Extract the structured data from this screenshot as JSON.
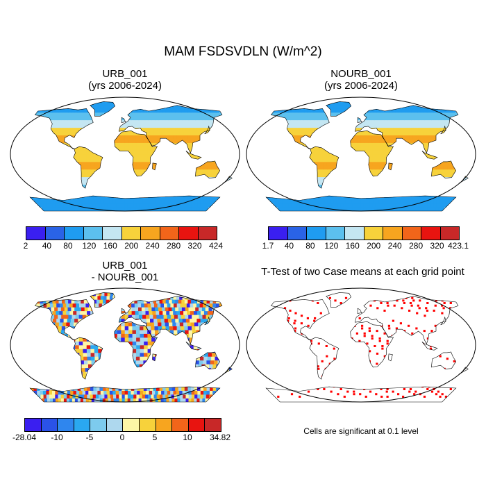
{
  "title": "MAM FSDSVDLN (W/m^2)",
  "panels": [
    {
      "title_line1": "URB_001",
      "title_line2": "(yrs 2006-2024)"
    },
    {
      "title_line1": "NOURB_001",
      "title_line2": "(yrs 2006-2024)"
    },
    {
      "title_line1": "URB_001",
      "title_line2": "- NOURB_001"
    },
    {
      "title_line1": "T-Test of two Case means at each grid point",
      "title_line2": ""
    }
  ],
  "colorbars": {
    "urb": {
      "labels": [
        "2",
        "40",
        "80",
        "120",
        "160",
        "200",
        "240",
        "280",
        "320",
        "424"
      ],
      "colors": [
        "#3a1ff0",
        "#2a63e6",
        "#1f9cf0",
        "#5cc0ee",
        "#c4e6f2",
        "#f7d23b",
        "#f7a51f",
        "#f2651a",
        "#e81410",
        "#c82828"
      ]
    },
    "nourb": {
      "labels": [
        "1.7",
        "40",
        "80",
        "120",
        "160",
        "200",
        "240",
        "280",
        "320",
        "423.1"
      ],
      "colors": [
        "#3a1ff0",
        "#2a63e6",
        "#1f9cf0",
        "#5cc0ee",
        "#c4e6f2",
        "#f7d23b",
        "#f7a51f",
        "#f2651a",
        "#e81410",
        "#c82828"
      ]
    },
    "diff": {
      "labels": [
        "-28.04",
        "-10",
        "-5",
        "0",
        "5",
        "10",
        "34.82"
      ],
      "colors": [
        "#3a1ff0",
        "#2a52e8",
        "#2f86ee",
        "#2aa8f0",
        "#7dcbee",
        "#aed8ee",
        "#fdf6a6",
        "#f7d23b",
        "#f7a51f",
        "#f2651a",
        "#e81410",
        "#c82828"
      ]
    }
  },
  "significance_color": "#ff0000",
  "note": "Cells are significant at 0.1 level"
}
